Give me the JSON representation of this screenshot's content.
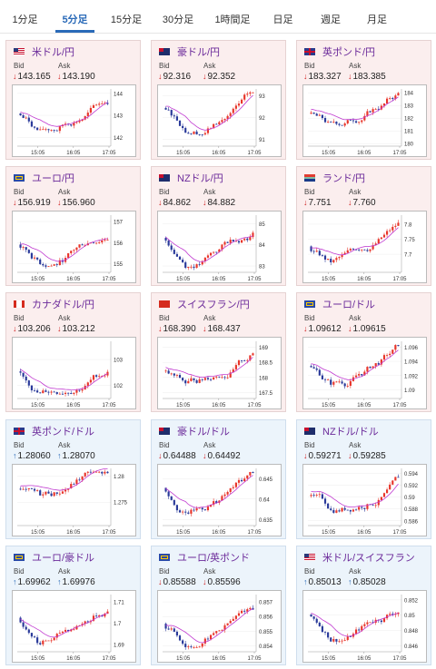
{
  "tabs": [
    "1分足",
    "5分足",
    "15分足",
    "30分足",
    "1時間足",
    "日足",
    "週足",
    "月足"
  ],
  "active_tab": 1,
  "labels": {
    "bid": "Bid",
    "ask": "Ask"
  },
  "x_ticks": [
    "15:05",
    "16:05",
    "17:05"
  ],
  "colors": {
    "up": "#e8352a",
    "down": "#2a3a9a",
    "ma": "#c03ad0",
    "ma2": "#3a9adf",
    "bid_down": "#d02020",
    "bid_up": "#2a6ab8"
  },
  "cards": [
    {
      "name": "米ドル/円",
      "flag": "us-flag",
      "bid": "143.165",
      "ask": "143.190",
      "bid_dir": "down",
      "ask_dir": "down",
      "bg": "pink",
      "yticks": [
        "144",
        "143",
        "142"
      ],
      "ylim": [
        141.6,
        144.2
      ]
    },
    {
      "name": "豪ドル/円",
      "flag": "au-flag",
      "bid": "92.316",
      "ask": "92.352",
      "bid_dir": "down",
      "ask_dir": "down",
      "bg": "pink",
      "yticks": [
        "93",
        "92",
        "91"
      ],
      "ylim": [
        90.7,
        93.3
      ]
    },
    {
      "name": "英ポンド/円",
      "flag": "gb-flag",
      "bid": "183.327",
      "ask": "183.385",
      "bid_dir": "down",
      "ask_dir": "down",
      "bg": "pink",
      "yticks": [
        "184",
        "183",
        "182",
        "181",
        "180"
      ],
      "ylim": [
        179.8,
        184.3
      ]
    },
    {
      "name": "ユーロ/円",
      "flag": "eu-flag",
      "bid": "156.919",
      "ask": "156.960",
      "bid_dir": "down",
      "ask_dir": "down",
      "bg": "pink",
      "yticks": [
        "157",
        "156",
        "155"
      ],
      "ylim": [
        154.6,
        157.3
      ]
    },
    {
      "name": "NZドル/円",
      "flag": "nz-flag",
      "bid": "84.862",
      "ask": "84.882",
      "bid_dir": "down",
      "ask_dir": "down",
      "bg": "pink",
      "yticks": [
        "85",
        "84",
        "83"
      ],
      "ylim": [
        82.7,
        85.4
      ]
    },
    {
      "name": "ランド/円",
      "flag": "za-flag",
      "bid": "7.751",
      "ask": "7.760",
      "bid_dir": "down",
      "ask_dir": "down",
      "bg": "pink",
      "yticks": [
        "7.8",
        "7.75",
        "7.7"
      ],
      "ylim": [
        7.64,
        7.83
      ]
    },
    {
      "name": "カナダドル/円",
      "flag": "ca-flag",
      "bid": "103.206",
      "ask": "103.212",
      "bid_dir": "down",
      "ask_dir": "down",
      "bg": "pink",
      "yticks": [
        "103",
        "102"
      ],
      "ylim": [
        101.5,
        103.7
      ]
    },
    {
      "name": "スイスフラン/円",
      "flag": "ch-flag",
      "bid": "168.390",
      "ask": "168.437",
      "bid_dir": "down",
      "ask_dir": "down",
      "bg": "pink",
      "yticks": [
        "169",
        "168.5",
        "168",
        "167.5"
      ],
      "ylim": [
        167.3,
        169.2
      ]
    },
    {
      "name": "ユーロ/ドル",
      "flag": "eu-flag",
      "bid": "1.09612",
      "ask": "1.09615",
      "bid_dir": "down",
      "ask_dir": "down",
      "bg": "pink",
      "yticks": [
        "1.096",
        "1.094",
        "1.092",
        "1.09"
      ],
      "ylim": [
        1.0888,
        1.0968
      ]
    },
    {
      "name": "英ポンド/ドル",
      "flag": "gb-flag",
      "bid": "1.28060",
      "ask": "1.28070",
      "bid_dir": "up",
      "ask_dir": "up",
      "bg": "blue",
      "yticks": [
        "1.28",
        "1.275"
      ],
      "ylim": [
        1.2705,
        1.2815
      ]
    },
    {
      "name": "豪ドル/ドル",
      "flag": "au-flag",
      "bid": "0.64488",
      "ask": "0.64492",
      "bid_dir": "down",
      "ask_dir": "down",
      "bg": "blue",
      "yticks": [
        "0.645",
        "0.64",
        "0.635"
      ],
      "ylim": [
        0.6335,
        0.6475
      ]
    },
    {
      "name": "NZドル/ドル",
      "flag": "nz-flag",
      "bid": "0.59271",
      "ask": "0.59285",
      "bid_dir": "down",
      "ask_dir": "down",
      "bg": "blue",
      "yticks": [
        "0.594",
        "0.592",
        "0.59",
        "0.588",
        "0.586"
      ],
      "ylim": [
        0.5852,
        0.5948
      ]
    },
    {
      "name": "ユーロ/豪ドル",
      "flag": "eu-flag",
      "bid": "1.69962",
      "ask": "1.69976",
      "bid_dir": "up",
      "ask_dir": "up",
      "bg": "blue",
      "yticks": [
        "1.71",
        "1.7",
        "1.69"
      ],
      "ylim": [
        1.6865,
        1.7135
      ]
    },
    {
      "name": "ユーロ/英ポンド",
      "flag": "eu-flag",
      "bid": "0.85588",
      "ask": "0.85596",
      "bid_dir": "down",
      "ask_dir": "down",
      "bg": "blue",
      "yticks": [
        "0.857",
        "0.856",
        "0.855",
        "0.854"
      ],
      "ylim": [
        0.8536,
        0.8575
      ]
    },
    {
      "name": "米ドル/スイスフラン",
      "flag": "us-flag",
      "bid": "0.85013",
      "ask": "0.85028",
      "bid_dir": "up",
      "ask_dir": "up",
      "bg": "blue",
      "yticks": [
        "0.852",
        "0.85",
        "0.848",
        "0.846"
      ],
      "ylim": [
        0.8452,
        0.8527
      ]
    }
  ]
}
